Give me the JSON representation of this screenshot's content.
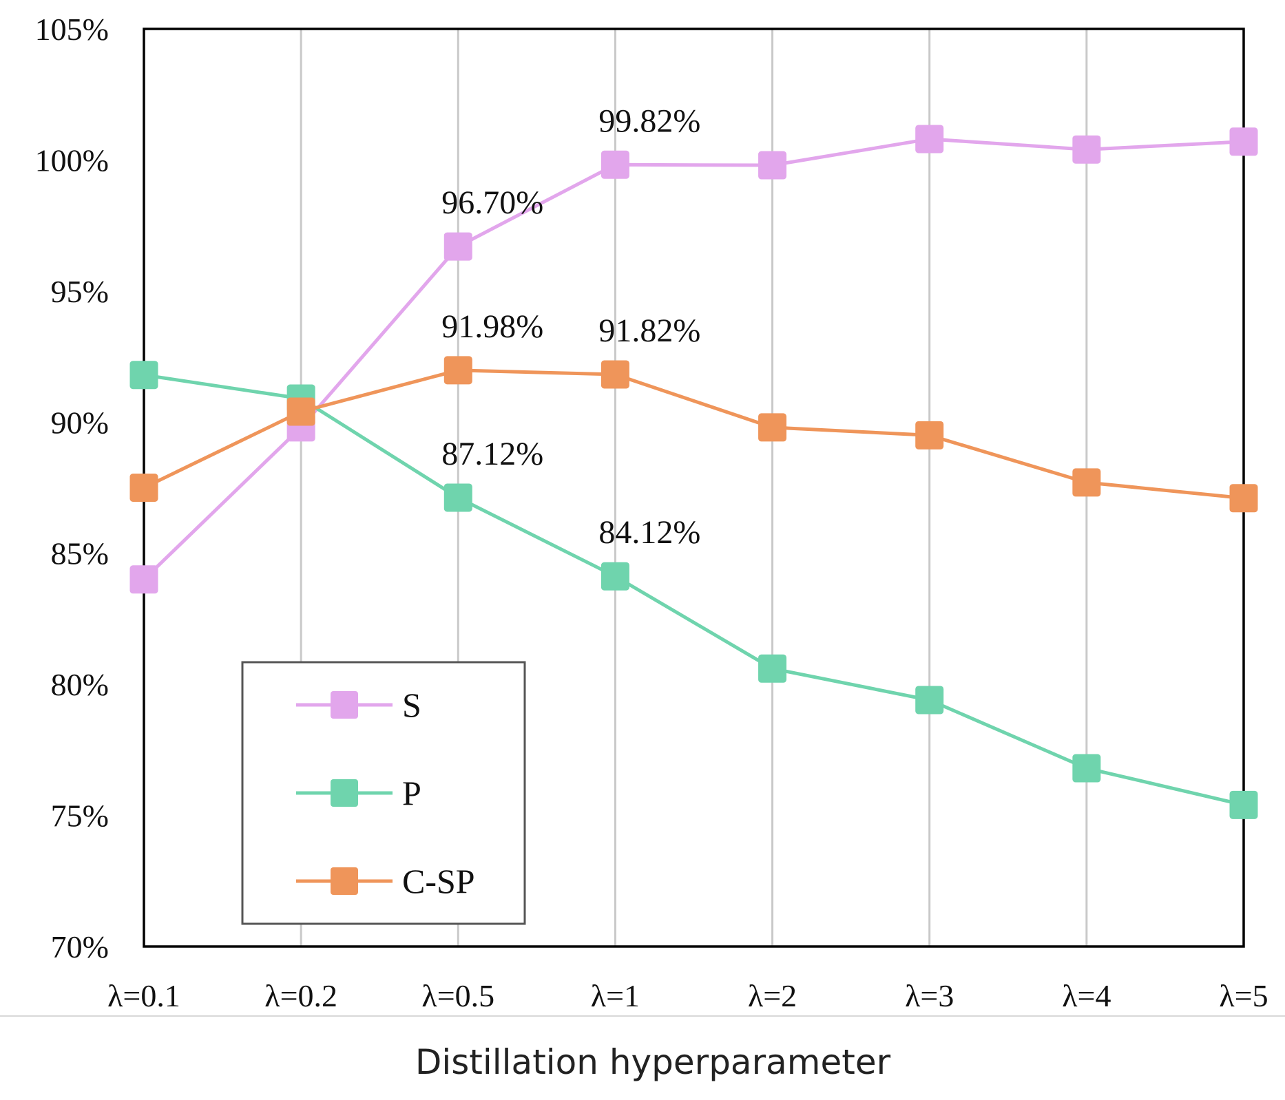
{
  "chart_data": {
    "type": "line",
    "categories": [
      "λ=0.1",
      "λ=0.2",
      "λ=0.5",
      "λ=1",
      "λ=2",
      "λ=3",
      "λ=4",
      "λ=5"
    ],
    "series": [
      {
        "name": "S",
        "color": "#e2a6ec",
        "values": [
          84.0,
          89.8,
          96.7,
          99.82,
          99.8,
          100.8,
          100.4,
          100.7
        ]
      },
      {
        "name": "P",
        "color": "#6fd4ad",
        "values": [
          91.8,
          90.9,
          87.12,
          84.12,
          80.6,
          79.4,
          76.8,
          75.4
        ]
      },
      {
        "name": "C-SP",
        "color": "#ef955a",
        "values": [
          87.5,
          90.4,
          91.98,
          91.82,
          89.8,
          89.5,
          87.7,
          87.1
        ]
      }
    ],
    "annotations": [
      {
        "series": 0,
        "index": 2,
        "text": "96.70%"
      },
      {
        "series": 0,
        "index": 3,
        "text": "99.82%"
      },
      {
        "series": 2,
        "index": 2,
        "text": "91.98%"
      },
      {
        "series": 2,
        "index": 3,
        "text": "91.82%"
      },
      {
        "series": 1,
        "index": 2,
        "text": "87.12%"
      },
      {
        "series": 1,
        "index": 3,
        "text": "84.12%"
      }
    ],
    "yticks": [
      "70%",
      "75%",
      "80%",
      "85%",
      "90%",
      "95%",
      "100%",
      "105%"
    ],
    "ylim": [
      70,
      105
    ],
    "xlabel": "Distillation hyperparameter",
    "ylabel": "",
    "title": "",
    "grid": "vertical",
    "legend": "bottom-left"
  }
}
